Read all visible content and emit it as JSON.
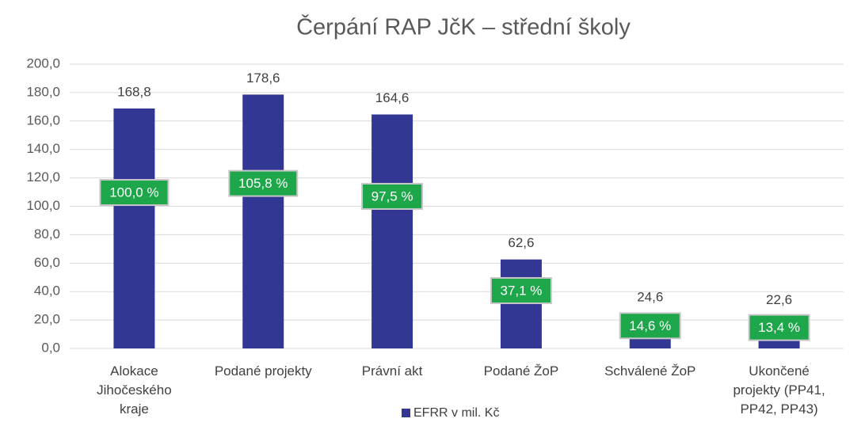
{
  "chart_data": {
    "type": "bar",
    "title": "Čerpání RAP JčK – střední školy",
    "categories": [
      "Alokace Jihočeského kraje",
      "Podané projekty",
      "Právní akt",
      "Podané ŽoP",
      "Schválené ŽoP",
      "Ukončené projekty (PP41, PP42, PP43)"
    ],
    "series": [
      {
        "name": "EFRR v mil. Kč",
        "color": "#333794",
        "values": [
          168.8,
          178.6,
          164.6,
          62.6,
          24.6,
          22.6
        ],
        "value_labels": [
          "168,8",
          "178,6",
          "164,6",
          "62,6",
          "24,6",
          "22,6"
        ]
      }
    ],
    "percent_values": [
      100.0,
      105.8,
      97.5,
      37.1,
      14.6,
      13.4
    ],
    "percent_labels": [
      "100,0 %",
      "105,8 %",
      "97,5 %",
      "37,1 %",
      "14,6 %",
      "13,4 %"
    ],
    "ylim": [
      0,
      200
    ],
    "yticks": [
      {
        "value": 0,
        "label": "0,0"
      },
      {
        "value": 20,
        "label": "20,0"
      },
      {
        "value": 40,
        "label": "40,0"
      },
      {
        "value": 60,
        "label": "60,0"
      },
      {
        "value": 80,
        "label": "80,0"
      },
      {
        "value": 100,
        "label": "100,0"
      },
      {
        "value": 120,
        "label": "120,0"
      },
      {
        "value": 140,
        "label": "140,0"
      },
      {
        "value": 160,
        "label": "160,0"
      },
      {
        "value": 180,
        "label": "180,0"
      },
      {
        "value": 200,
        "label": "200,0"
      }
    ],
    "grid": true,
    "legend": "bottom"
  }
}
